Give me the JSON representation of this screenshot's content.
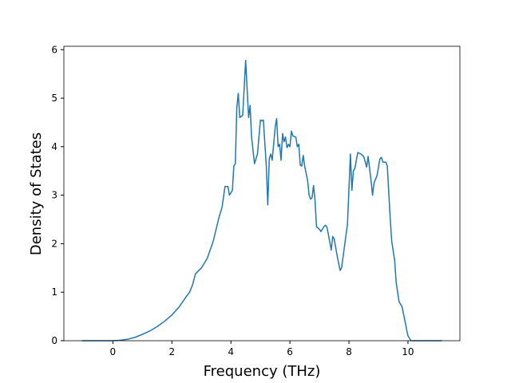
{
  "chart_data": {
    "type": "line",
    "xlabel": "Frequency (THz)",
    "ylabel": "Density of States",
    "xlim": [
      -1.66,
      11.76
    ],
    "ylim": [
      0,
      6.07
    ],
    "xticks": [
      0,
      2,
      4,
      6,
      8,
      10
    ],
    "yticks": [
      0,
      1,
      2,
      3,
      4,
      5,
      6
    ],
    "series": [
      {
        "color": "#1f77b4",
        "x": [
          -1.05,
          0,
          0.25,
          0.5,
          0.75,
          1,
          1.25,
          1.5,
          1.75,
          2,
          2.25,
          2.5,
          2.6,
          2.7,
          2.8,
          3.0,
          3.2,
          3.4,
          3.6,
          3.7,
          3.8,
          3.9,
          3.95,
          4.05,
          4.1,
          4.15,
          4.2,
          4.25,
          4.3,
          4.4,
          4.5,
          4.6,
          4.65,
          4.7,
          4.8,
          4.9,
          5.0,
          5.05,
          5.1,
          5.2,
          5.25,
          5.3,
          5.35,
          5.4,
          5.5,
          5.55,
          5.6,
          5.65,
          5.7,
          5.75,
          5.8,
          5.85,
          5.9,
          5.95,
          6.0,
          6.05,
          6.1,
          6.2,
          6.25,
          6.3,
          6.35,
          6.4,
          6.45,
          6.5,
          6.6,
          6.65,
          6.7,
          6.75,
          6.8,
          6.85,
          6.9,
          7.0,
          7.05,
          7.15,
          7.2,
          7.25,
          7.3,
          7.4,
          7.45,
          7.5,
          7.6,
          7.7,
          7.75,
          7.85,
          7.95,
          8.05,
          8.1,
          8.15,
          8.2,
          8.3,
          8.4,
          8.5,
          8.6,
          8.65,
          8.75,
          8.8,
          8.85,
          8.95,
          9.05,
          9.1,
          9.15,
          9.25,
          9.3,
          9.4,
          9.45,
          9.55,
          9.6,
          9.7,
          9.8,
          9.9,
          10.0,
          10.1,
          11.15
        ],
        "values": [
          0,
          0,
          0.01,
          0.03,
          0.07,
          0.13,
          0.2,
          0.29,
          0.4,
          0.53,
          0.7,
          0.92,
          1.0,
          1.15,
          1.38,
          1.5,
          1.7,
          2.05,
          2.55,
          2.75,
          3.18,
          3.18,
          3.0,
          3.1,
          3.6,
          3.65,
          4.8,
          5.1,
          4.6,
          4.65,
          5.78,
          4.6,
          4.85,
          4.2,
          3.65,
          3.85,
          4.55,
          4.53,
          4.55,
          3.6,
          2.8,
          3.75,
          3.85,
          3.72,
          4.4,
          4.58,
          4.0,
          4.05,
          3.72,
          4.27,
          4.1,
          4.2,
          3.98,
          4.05,
          4.0,
          4.32,
          4.22,
          4.2,
          4.0,
          4.05,
          3.62,
          3.6,
          3.82,
          3.6,
          3.3,
          3.0,
          2.92,
          2.95,
          3.2,
          2.9,
          2.35,
          2.3,
          2.25,
          2.35,
          2.38,
          2.35,
          2.2,
          1.87,
          2.15,
          2.1,
          1.75,
          1.45,
          1.5,
          1.95,
          2.4,
          3.85,
          3.1,
          3.5,
          3.55,
          3.88,
          3.85,
          3.8,
          3.58,
          3.8,
          3.3,
          3.0,
          3.25,
          3.4,
          3.75,
          3.78,
          3.68,
          3.68,
          3.6,
          2.5,
          2.05,
          1.65,
          1.2,
          0.8,
          0.7,
          0.4,
          0.1,
          0,
          0
        ]
      }
    ]
  }
}
